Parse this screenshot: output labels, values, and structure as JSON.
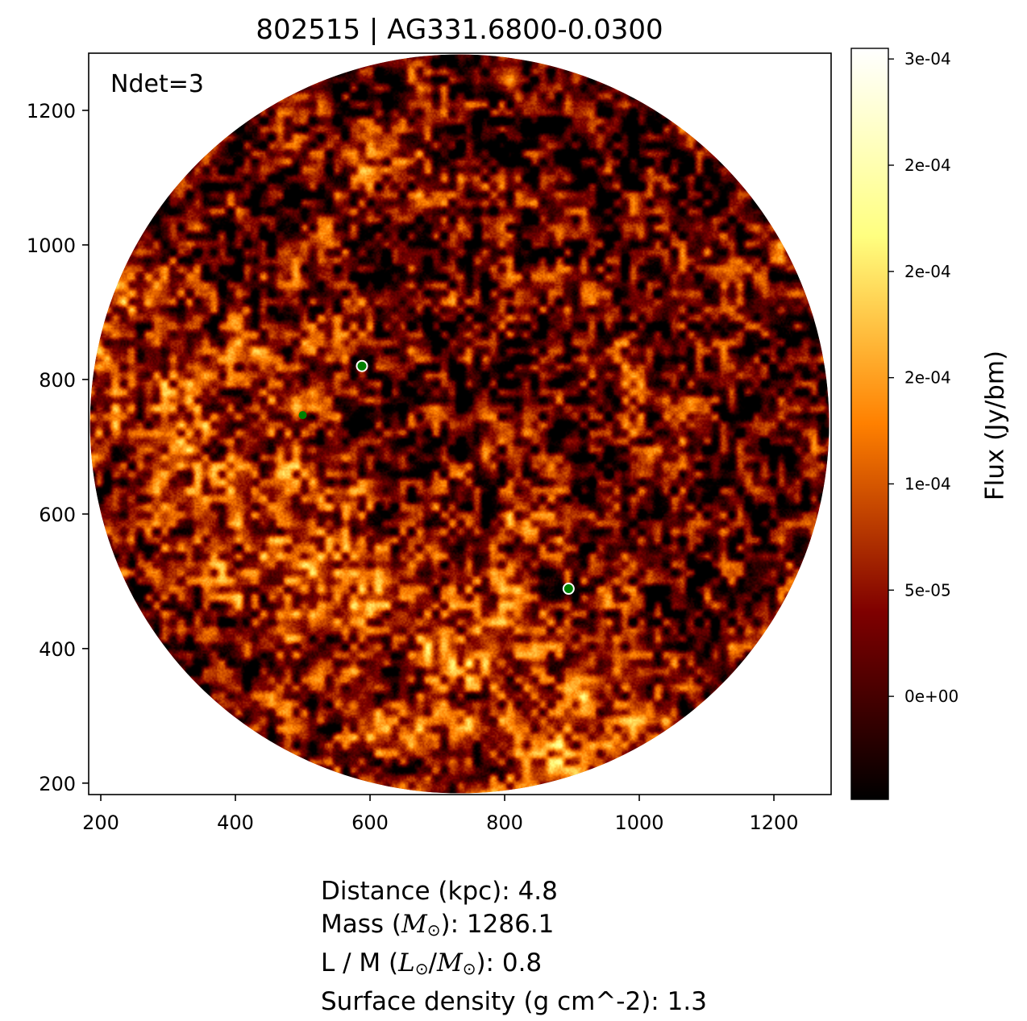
{
  "chart_data": {
    "type": "heatmap",
    "title": "802515 | AG331.6800-0.0300",
    "annotation": "Ndet=3",
    "xlim": [
      182,
      1285
    ],
    "ylim": [
      183,
      1285
    ],
    "x_ticks": [
      200,
      400,
      600,
      800,
      1000,
      1200
    ],
    "y_ticks": [
      200,
      400,
      600,
      800,
      1000,
      1200
    ],
    "x_tick_labels": [
      "200",
      "400",
      "600",
      "800",
      "1000",
      "1200"
    ],
    "y_tick_labels": [
      "200",
      "400",
      "600",
      "800",
      "1000",
      "1200"
    ],
    "field_circle": {
      "center": [
        733,
        734
      ],
      "radius": 549
    },
    "colormap": "afmhot",
    "colorbar": {
      "label": "Flux (Jy/bm)",
      "vmin": -4.85e-05,
      "vmax": 0.000305,
      "tick_values": [
        0.0,
        5e-05,
        0.0001,
        0.00015,
        0.0002,
        0.00025,
        0.0003
      ],
      "tick_labels": [
        "0e+00",
        "5e-05",
        "1e-04",
        "2e-04",
        "2e-04",
        "2e-04",
        "3e-04"
      ]
    },
    "detections": [
      {
        "x": 588,
        "y": 820,
        "ring": true
      },
      {
        "x": 500,
        "y": 747,
        "ring": false
      },
      {
        "x": 895,
        "y": 489,
        "ring": true
      }
    ],
    "detection_color": "#008000"
  },
  "info": {
    "distance_prefix": "Distance (kpc): ",
    "distance_value": "4.8",
    "mass_open": "Mass (",
    "mass_symbol": "M",
    "mass_sub": "⊙",
    "mass_close": "): ",
    "mass_value": "1286.1",
    "lm_prefix": "L / M (",
    "lm_L": "L",
    "lm_L_sub": "⊙",
    "lm_slash": "/",
    "lm_M": "M",
    "lm_M_sub": "⊙",
    "lm_close": "): ",
    "lm_value": "0.8",
    "surface_prefix": "Surface density (g cm^-2): ",
    "surface_value": "1.3"
  }
}
